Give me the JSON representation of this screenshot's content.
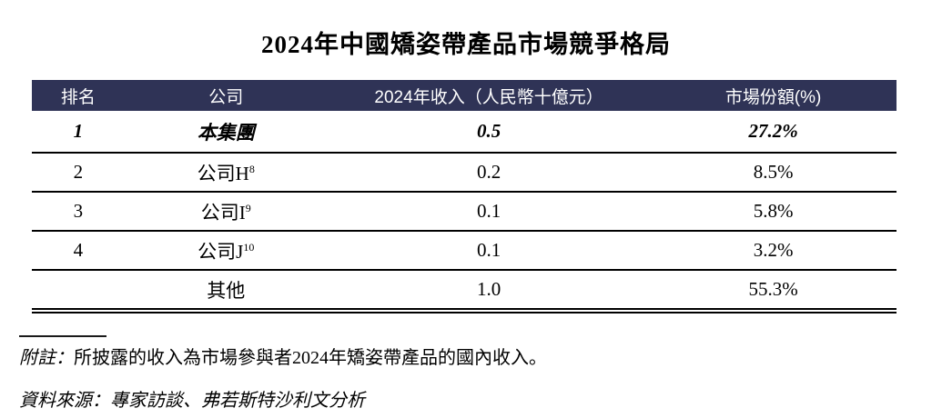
{
  "title": "2024年中國矯姿帶產品市場競爭格局",
  "table": {
    "headers": [
      "排名",
      "公司",
      "2024年收入（人民幣十億元）",
      "市場份額(%)"
    ],
    "rows": [
      {
        "rank": "1",
        "company": "本集團",
        "company_sup": "",
        "revenue": "0.5",
        "share": "27.2%"
      },
      {
        "rank": "2",
        "company": "公司H",
        "company_sup": "8",
        "revenue": "0.2",
        "share": "8.5%"
      },
      {
        "rank": "3",
        "company": "公司I",
        "company_sup": "9",
        "revenue": "0.1",
        "share": "5.8%"
      },
      {
        "rank": "4",
        "company": "公司J",
        "company_sup": "10",
        "revenue": "0.1",
        "share": "3.2%"
      },
      {
        "rank": "",
        "company": "其他",
        "company_sup": "",
        "revenue": "1.0",
        "share": "55.3%"
      }
    ]
  },
  "note": {
    "label": "附註：",
    "text": "所披露的收入為市場參與者2024年矯姿帶產品的國內收入。"
  },
  "source": "資料來源：專家訪談、弗若斯特沙利文分析",
  "colors": {
    "header_bg": "#2f3356",
    "header_text": "#ffffff",
    "body_text": "#000000"
  }
}
